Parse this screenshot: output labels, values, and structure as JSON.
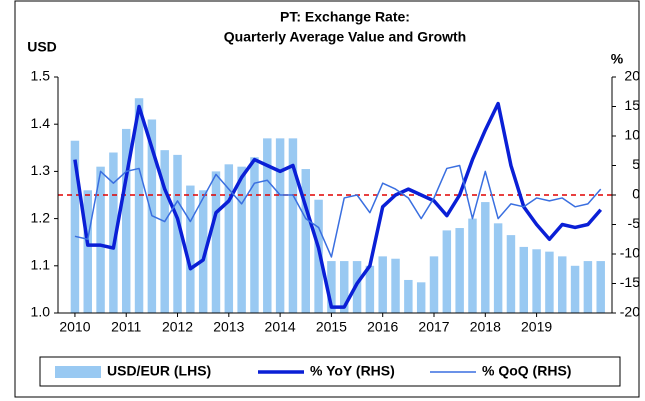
{
  "chart_data": {
    "type": "bar_line",
    "title": [
      "PT: Exchange Rate:",
      "Quarterly Average Value and Growth"
    ],
    "y_label": "USD",
    "y2_label": "%",
    "x": [
      2010,
      2010.25,
      2010.5,
      2010.75,
      2011,
      2011.25,
      2011.5,
      2011.75,
      2012,
      2012.25,
      2012.5,
      2012.75,
      2013,
      2013.25,
      2013.5,
      2013.75,
      2014,
      2014.25,
      2014.5,
      2014.75,
      2015,
      2015.25,
      2015.5,
      2015.75,
      2016,
      2016.25,
      2016.5,
      2016.75,
      2017,
      2017.25,
      2017.5,
      2017.75,
      2018,
      2018.25,
      2018.5,
      2018.75,
      2019,
      2019.25,
      2019.5,
      2019.75,
      2020,
      2020.25
    ],
    "xlim": [
      2009.67,
      2020.47
    ],
    "xticks": [
      2010,
      2011,
      2012,
      2013,
      2014,
      2015,
      2016,
      2017,
      2018,
      2019
    ],
    "ylim": [
      1.0,
      1.5
    ],
    "yticks": [
      {
        "value": 1.0,
        "label": "1.0"
      },
      1.1,
      1.2,
      1.3,
      1.4,
      1.5
    ],
    "y2lim": [
      -20,
      20
    ],
    "y2ticks": [
      -20,
      -15,
      -10,
      -5,
      0,
      5,
      10,
      15,
      20
    ],
    "reference_line": {
      "value": 0,
      "axis": "y2",
      "color": "#e00000"
    },
    "series": [
      {
        "name": "USD/EUR (LHS)",
        "kind": "bar",
        "color": "#99c9f2",
        "values": [
          1.365,
          1.26,
          1.31,
          1.34,
          1.39,
          1.455,
          1.41,
          1.345,
          1.335,
          1.27,
          1.26,
          1.3,
          1.315,
          1.31,
          1.33,
          1.37,
          1.37,
          1.37,
          1.305,
          1.24,
          1.11,
          1.11,
          1.11,
          1.1,
          1.12,
          1.115,
          1.07,
          1.065,
          1.12,
          1.175,
          1.18,
          1.2,
          1.235,
          1.19,
          1.165,
          1.14,
          1.135,
          1.13,
          1.12,
          1.1,
          1.11,
          1.11
        ]
      },
      {
        "name": "% YoY (RHS)",
        "kind": "line",
        "axis": "y2",
        "color": "#0a1fd6",
        "width": 3.5,
        "values": [
          6,
          -8.5,
          -8.5,
          -9,
          3,
          15,
          8,
          1,
          -4,
          -12.5,
          -11,
          -3,
          -1,
          3,
          6,
          5,
          4,
          5,
          -2,
          -9,
          -19,
          -19,
          -15,
          -12,
          -2,
          0,
          1,
          0,
          -1,
          -3.5,
          0,
          6,
          11,
          15.5,
          5,
          -2,
          -5,
          -7.5,
          -5,
          -5.5,
          -5,
          -2.5
        ]
      },
      {
        "name": "% QoQ (RHS)",
        "kind": "line",
        "axis": "y2",
        "color": "#3a6fe0",
        "width": 1.5,
        "values": [
          -7,
          -7.5,
          4,
          2,
          4,
          4.5,
          -3.5,
          -4.5,
          -1,
          -4.5,
          -0.5,
          3.5,
          1,
          -1.5,
          2,
          2.5,
          0,
          0,
          -4,
          -5.5,
          -10.5,
          -0.5,
          0,
          -3,
          2,
          1,
          -0.5,
          -4,
          -0.5,
          4.5,
          5,
          -4,
          4,
          -4,
          -1.5,
          -2,
          -0.5,
          -1,
          -0.5,
          -2,
          -1.5,
          1
        ]
      }
    ]
  }
}
